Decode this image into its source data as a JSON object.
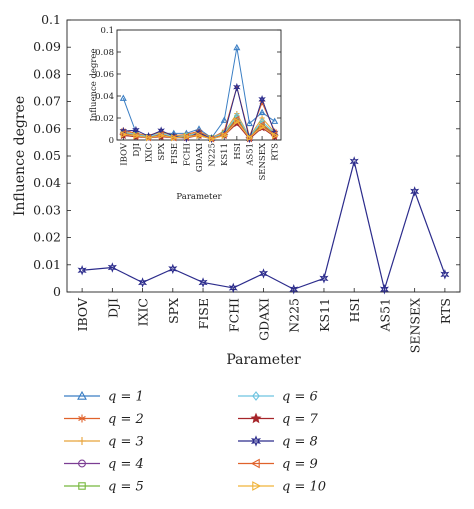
{
  "chart_data": [
    {
      "type": "line",
      "xlabel": "Parameter",
      "ylabel": "Influence degree",
      "categories": [
        "IBOV",
        "DJI",
        "IXIC",
        "SPX",
        "FISE",
        "FCHI",
        "GDAXI",
        "N225",
        "KS11",
        "HSI",
        "AS51",
        "SENSEX",
        "RTS"
      ],
      "ylim": [
        0,
        0.1
      ],
      "yticks": [
        "0",
        "0.01",
        "0.02",
        "0.03",
        "0.04",
        "0.05",
        "0.06",
        "0.07",
        "0.08",
        "0.09",
        "0.1"
      ],
      "series": [
        {
          "name": "q = 8",
          "color": "#2c2c8c",
          "marker": "star",
          "values": [
            0.008,
            0.009,
            0.0035,
            0.0085,
            0.0035,
            0.0015,
            0.0068,
            0.001,
            0.005,
            0.048,
            0.001,
            0.037,
            0.0065
          ]
        }
      ]
    },
    {
      "type": "line",
      "xlabel": "Parameter",
      "ylabel": "Influence degree",
      "categories": [
        "IBOV",
        "DJI",
        "IXIC",
        "SPX",
        "FISE",
        "FCHI",
        "GDAXI",
        "N225",
        "KS11",
        "HSI",
        "AS51",
        "SENSEX",
        "RTS"
      ],
      "ylim": [
        0,
        0.1
      ],
      "yticks": [
        "0",
        "0.02",
        "0.04",
        "0.06",
        "0.08",
        "0.1"
      ],
      "series": [
        {
          "name": "q = 1",
          "color": "#3a7ec4",
          "marker": "triangle-up",
          "values": [
            0.038,
            0.007,
            0.002,
            0.006,
            0.006,
            0.006,
            0.01,
            0.002,
            0.018,
            0.084,
            0.015,
            0.025,
            0.017
          ]
        },
        {
          "name": "q = 2",
          "color": "#e0622b",
          "marker": "asterisk",
          "values": [
            0.009,
            0.006,
            0.004,
            0.008,
            0.004,
            0.005,
            0.008,
            0.002,
            0.008,
            0.048,
            0.003,
            0.034,
            0.008
          ]
        },
        {
          "name": "q = 3",
          "color": "#e8a33a",
          "marker": "plus",
          "values": [
            0.008,
            0.005,
            0.004,
            0.007,
            0.004,
            0.004,
            0.007,
            0.002,
            0.007,
            0.024,
            0.003,
            0.02,
            0.007
          ]
        },
        {
          "name": "q = 4",
          "color": "#7b3d93",
          "marker": "circle",
          "values": [
            0.005,
            0.004,
            0.002,
            0.004,
            0.003,
            0.003,
            0.005,
            0.001,
            0.005,
            0.018,
            0.002,
            0.013,
            0.004
          ]
        },
        {
          "name": "q = 5",
          "color": "#76b83d",
          "marker": "square",
          "values": [
            0.006,
            0.005,
            0.003,
            0.005,
            0.003,
            0.004,
            0.006,
            0.002,
            0.006,
            0.02,
            0.003,
            0.015,
            0.005
          ]
        },
        {
          "name": "q = 6",
          "color": "#6ec4e0",
          "marker": "diamond",
          "values": [
            0.007,
            0.005,
            0.003,
            0.006,
            0.003,
            0.004,
            0.006,
            0.002,
            0.006,
            0.022,
            0.003,
            0.017,
            0.006
          ]
        },
        {
          "name": "q = 7",
          "color": "#a6252a",
          "marker": "pentagram",
          "values": [
            0.004,
            0.003,
            0.002,
            0.003,
            0.002,
            0.002,
            0.004,
            0.001,
            0.004,
            0.015,
            0.001,
            0.011,
            0.003
          ]
        },
        {
          "name": "q = 8",
          "color": "#2c2c8c",
          "marker": "star",
          "values": [
            0.008,
            0.009,
            0.0035,
            0.0085,
            0.0035,
            0.0015,
            0.0068,
            0.001,
            0.005,
            0.048,
            0.001,
            0.037,
            0.0065
          ]
        },
        {
          "name": "q = 9",
          "color": "#e0622b",
          "marker": "triangle-left",
          "values": [
            0.006,
            0.004,
            0.002,
            0.005,
            0.002,
            0.003,
            0.005,
            0.001,
            0.005,
            0.019,
            0.002,
            0.014,
            0.005
          ]
        },
        {
          "name": "q = 10",
          "color": "#f0b43a",
          "marker": "triangle-right",
          "values": [
            0.005,
            0.004,
            0.002,
            0.004,
            0.002,
            0.003,
            0.004,
            0.001,
            0.004,
            0.017,
            0.002,
            0.012,
            0.004
          ]
        }
      ]
    }
  ],
  "legend": [
    {
      "name": "q = 1",
      "color": "#3a7ec4",
      "marker": "triangle-up"
    },
    {
      "name": "q = 2",
      "color": "#e0622b",
      "marker": "asterisk"
    },
    {
      "name": "q = 3",
      "color": "#e8a33a",
      "marker": "plus"
    },
    {
      "name": "q = 4",
      "color": "#7b3d93",
      "marker": "circle"
    },
    {
      "name": "q = 5",
      "color": "#76b83d",
      "marker": "square"
    },
    {
      "name": "q = 6",
      "color": "#6ec4e0",
      "marker": "diamond"
    },
    {
      "name": "q = 7",
      "color": "#a6252a",
      "marker": "pentagram"
    },
    {
      "name": "q = 8",
      "color": "#2c2c8c",
      "marker": "star"
    },
    {
      "name": "q = 9",
      "color": "#e0622b",
      "marker": "triangle-left"
    },
    {
      "name": "q = 10",
      "color": "#f0b43a",
      "marker": "triangle-right"
    }
  ]
}
